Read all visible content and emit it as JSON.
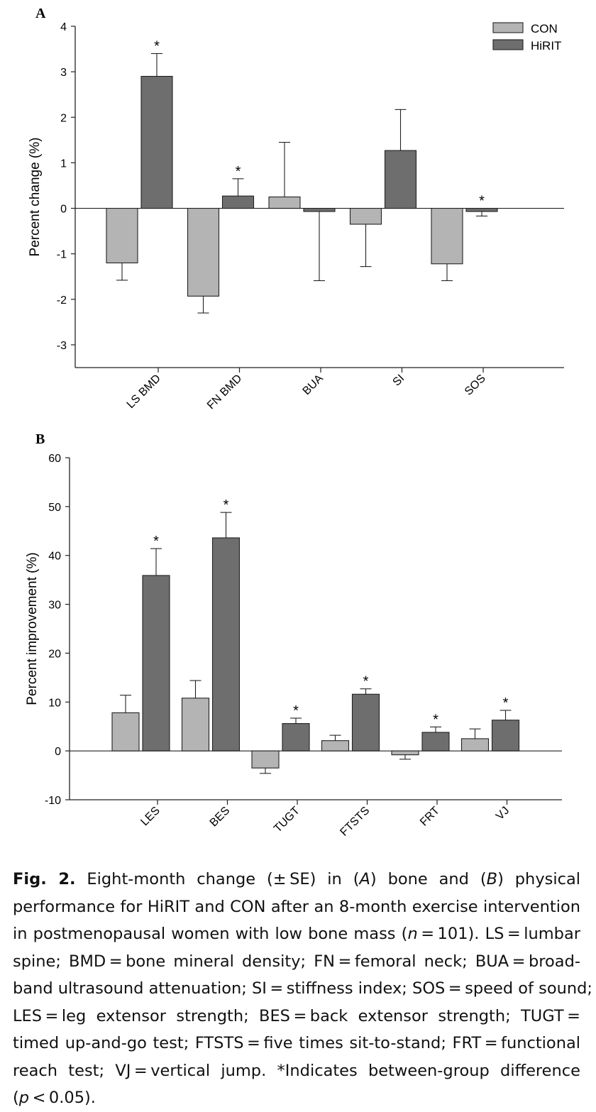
{
  "chart_data": [
    {
      "panel_label": "A",
      "type": "bar",
      "categories": [
        "LS BMD",
        "FN BMD",
        "BUA",
        "SI",
        "SOS"
      ],
      "series": [
        {
          "name": "CON",
          "values": [
            -1.2,
            -1.93,
            0.25,
            -0.35,
            -1.22
          ],
          "errors": [
            0.38,
            0.37,
            1.2,
            0.93,
            0.37
          ],
          "color": "#b4b4b4"
        },
        {
          "name": "HiRIT",
          "values": [
            2.9,
            0.27,
            -0.07,
            1.27,
            -0.07
          ],
          "errors": [
            0.5,
            0.38,
            1.52,
            0.9,
            0.1
          ],
          "color": "#6e6e6e"
        }
      ],
      "significant": [
        true,
        true,
        false,
        false,
        true
      ],
      "significance_marker": "*",
      "ylabel": "Percent change (%)",
      "ylim": [
        -3.5,
        4
      ],
      "yticks": [
        4,
        3,
        2,
        1,
        0,
        -1,
        -2,
        -3
      ],
      "legend": "top-right",
      "grid": false
    },
    {
      "panel_label": "B",
      "type": "bar",
      "categories": [
        "LES",
        "BES",
        "TUGT",
        "FTSTS",
        "FRT",
        "VJ"
      ],
      "series": [
        {
          "name": "CON",
          "values": [
            7.8,
            10.8,
            -3.5,
            2.1,
            -0.8,
            2.5
          ],
          "errors": [
            3.6,
            3.6,
            1.1,
            1.1,
            0.9,
            2.0
          ],
          "color": "#b4b4b4"
        },
        {
          "name": "HiRIT",
          "values": [
            35.9,
            43.6,
            5.6,
            11.6,
            3.8,
            6.3
          ],
          "errors": [
            5.5,
            5.2,
            1.1,
            1.1,
            1.1,
            2.0
          ],
          "color": "#6e6e6e"
        }
      ],
      "significant": [
        true,
        true,
        true,
        true,
        true,
        true
      ],
      "significance_marker": "*",
      "ylabel": "Percent improvement (%)",
      "ylim": [
        -10,
        60
      ],
      "yticks": [
        60,
        50,
        40,
        30,
        20,
        10,
        0,
        -10
      ],
      "grid": false
    }
  ],
  "caption": {
    "lines": [
      [
        "Fig. 2.",
        " Eight-month change (± SE) in (",
        "A",
        ") bone and (",
        "B",
        ") physical"
      ],
      [
        "performance for HiRIT and CON after an 8-month exercise intervention"
      ],
      [
        "in postmenopausal women with low bone mass (",
        "n",
        " = 101). LS = lumbar"
      ],
      [
        "spine; BMD = bone mineral density; FN = femoral neck; BUA = broad-"
      ],
      [
        "band ultrasound attenuation; SI = stiffness index; SOS = speed of sound;"
      ],
      [
        "LES = leg extensor strength; BES = back extensor strength; TUGT ="
      ],
      [
        "timed up-and-go test; FTSTS = five times sit-to-stand; FRT = functional"
      ],
      [
        "reach test; VJ = vertical jump. *Indicates between-group difference"
      ],
      [
        "(",
        "p",
        " < 0.05)."
      ]
    ]
  }
}
